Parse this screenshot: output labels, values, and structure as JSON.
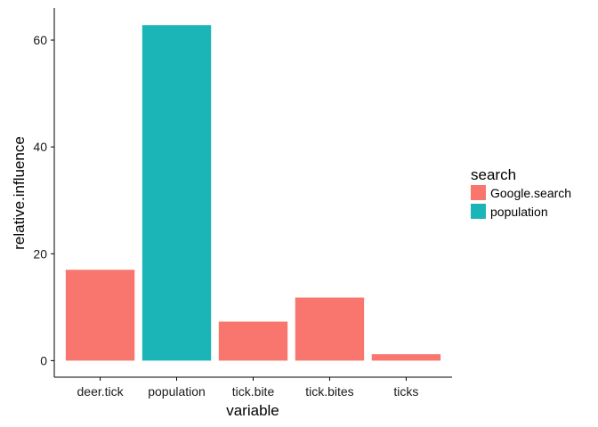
{
  "chart_data": {
    "type": "bar",
    "title": "",
    "xlabel": "variable",
    "ylabel": "relative.influence",
    "categories": [
      "deer.tick",
      "population",
      "tick.bite",
      "tick.bites",
      "ticks"
    ],
    "values": [
      17.0,
      62.8,
      7.3,
      11.8,
      1.2
    ],
    "groups": [
      "Google.search",
      "population",
      "Google.search",
      "Google.search",
      "Google.search"
    ],
    "ylim": [
      -3.1,
      66
    ],
    "yticks": [
      0,
      20,
      40,
      60
    ],
    "grid": false,
    "legend": {
      "title": "search",
      "position": "right",
      "entries": [
        {
          "label": "Google.search",
          "color": "#F8766D"
        },
        {
          "label": "population",
          "color": "#00BFC4"
        }
      ]
    }
  },
  "colors": {
    "Google.search": "#F8766D",
    "population": "#1BB5B8",
    "axis": "#000000"
  }
}
